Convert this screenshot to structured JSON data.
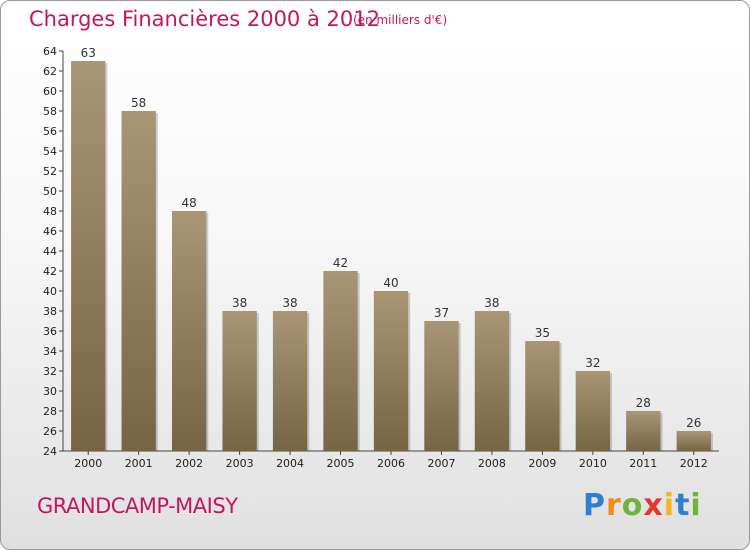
{
  "header": {
    "title": "Charges Financières 2000 à 2012",
    "subtitle": "(en milliers d'€)"
  },
  "footer": {
    "commune": "GRANDCAMP-MAISY",
    "logo_letters": [
      "P",
      "r",
      "o",
      "x",
      "i",
      "t",
      "i"
    ]
  },
  "colors": {
    "bar_top": "#a89676",
    "bar_bottom": "#766545",
    "accent": "#c2185b"
  },
  "chart_data": {
    "type": "bar",
    "title": "Charges Financières 2000 à 2012",
    "subtitle": "(en milliers d'€)",
    "categories": [
      "2000",
      "2001",
      "2002",
      "2003",
      "2004",
      "2005",
      "2006",
      "2007",
      "2008",
      "2009",
      "2010",
      "2011",
      "2012"
    ],
    "values": [
      63,
      58,
      48,
      38,
      38,
      42,
      40,
      37,
      38,
      35,
      32,
      28,
      26
    ],
    "ylim": [
      24,
      64
    ],
    "ytick_step": 2,
    "grid": false,
    "legend": "none",
    "xlabel": "",
    "ylabel": ""
  }
}
